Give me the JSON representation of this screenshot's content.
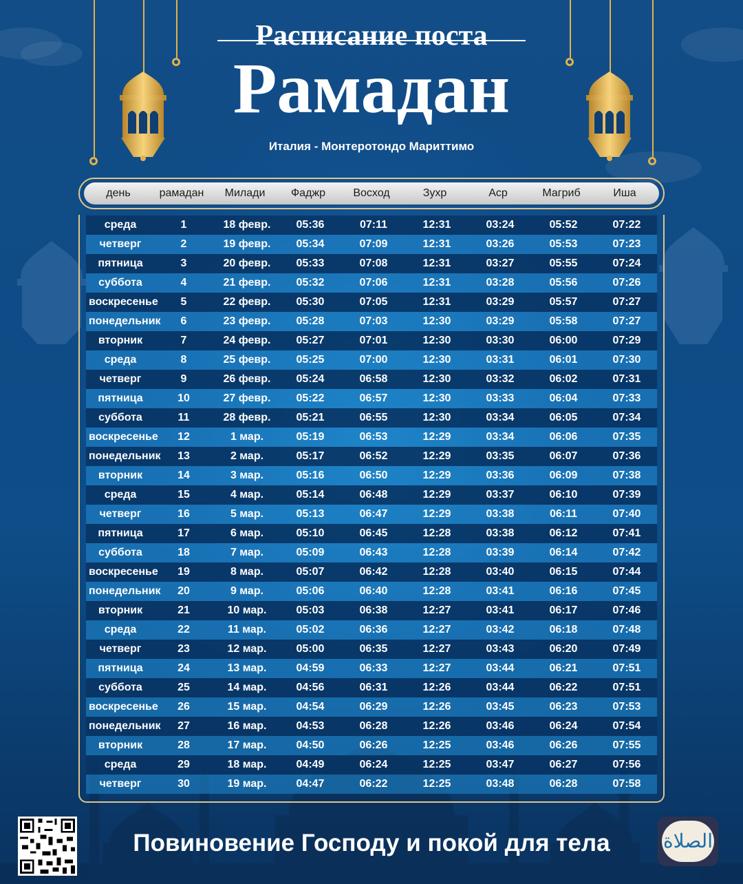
{
  "header": {
    "title_small": "Расписание поста",
    "title_big": "Рамадан",
    "location": "Италия - Монтеротондо Мариттимо"
  },
  "table": {
    "columns": [
      "день",
      "рамадан",
      "Милади",
      "Фаджр",
      "Восход",
      "Зухр",
      "Аср",
      "Магриб",
      "Иша"
    ],
    "rows": [
      [
        "среда",
        "1",
        "18 февр.",
        "05:36",
        "07:11",
        "12:31",
        "03:24",
        "05:52",
        "07:22"
      ],
      [
        "четверг",
        "2",
        "19 февр.",
        "05:34",
        "07:09",
        "12:31",
        "03:26",
        "05:53",
        "07:23"
      ],
      [
        "пятница",
        "3",
        "20 февр.",
        "05:33",
        "07:08",
        "12:31",
        "03:27",
        "05:55",
        "07:24"
      ],
      [
        "суббота",
        "4",
        "21 февр.",
        "05:32",
        "07:06",
        "12:31",
        "03:28",
        "05:56",
        "07:26"
      ],
      [
        "воскресенье",
        "5",
        "22 февр.",
        "05:30",
        "07:05",
        "12:31",
        "03:29",
        "05:57",
        "07:27"
      ],
      [
        "понедельник",
        "6",
        "23 февр.",
        "05:28",
        "07:03",
        "12:30",
        "03:29",
        "05:58",
        "07:27"
      ],
      [
        "вторник",
        "7",
        "24 февр.",
        "05:27",
        "07:01",
        "12:30",
        "03:30",
        "06:00",
        "07:29"
      ],
      [
        "среда",
        "8",
        "25 февр.",
        "05:25",
        "07:00",
        "12:30",
        "03:31",
        "06:01",
        "07:30"
      ],
      [
        "четверг",
        "9",
        "26 февр.",
        "05:24",
        "06:58",
        "12:30",
        "03:32",
        "06:02",
        "07:31"
      ],
      [
        "пятница",
        "10",
        "27 февр.",
        "05:22",
        "06:57",
        "12:30",
        "03:33",
        "06:04",
        "07:33"
      ],
      [
        "суббота",
        "11",
        "28 февр.",
        "05:21",
        "06:55",
        "12:30",
        "03:34",
        "06:05",
        "07:34"
      ],
      [
        "воскресенье",
        "12",
        "1 мар.",
        "05:19",
        "06:53",
        "12:29",
        "03:34",
        "06:06",
        "07:35"
      ],
      [
        "понедельник",
        "13",
        "2 мар.",
        "05:17",
        "06:52",
        "12:29",
        "03:35",
        "06:07",
        "07:36"
      ],
      [
        "вторник",
        "14",
        "3 мар.",
        "05:16",
        "06:50",
        "12:29",
        "03:36",
        "06:09",
        "07:38"
      ],
      [
        "среда",
        "15",
        "4 мар.",
        "05:14",
        "06:48",
        "12:29",
        "03:37",
        "06:10",
        "07:39"
      ],
      [
        "четверг",
        "16",
        "5 мар.",
        "05:13",
        "06:47",
        "12:29",
        "03:38",
        "06:11",
        "07:40"
      ],
      [
        "пятница",
        "17",
        "6 мар.",
        "05:10",
        "06:45",
        "12:28",
        "03:38",
        "06:12",
        "07:41"
      ],
      [
        "суббота",
        "18",
        "7 мар.",
        "05:09",
        "06:43",
        "12:28",
        "03:39",
        "06:14",
        "07:42"
      ],
      [
        "воскресенье",
        "19",
        "8 мар.",
        "05:07",
        "06:42",
        "12:28",
        "03:40",
        "06:15",
        "07:44"
      ],
      [
        "понедельник",
        "20",
        "9 мар.",
        "05:06",
        "06:40",
        "12:28",
        "03:41",
        "06:16",
        "07:45"
      ],
      [
        "вторник",
        "21",
        "10 мар.",
        "05:03",
        "06:38",
        "12:27",
        "03:41",
        "06:17",
        "07:46"
      ],
      [
        "среда",
        "22",
        "11 мар.",
        "05:02",
        "06:36",
        "12:27",
        "03:42",
        "06:18",
        "07:48"
      ],
      [
        "четверг",
        "23",
        "12 мар.",
        "05:00",
        "06:35",
        "12:27",
        "03:43",
        "06:20",
        "07:49"
      ],
      [
        "пятница",
        "24",
        "13 мар.",
        "04:59",
        "06:33",
        "12:27",
        "03:44",
        "06:21",
        "07:51"
      ],
      [
        "суббота",
        "25",
        "14 мар.",
        "04:56",
        "06:31",
        "12:26",
        "03:44",
        "06:22",
        "07:51"
      ],
      [
        "воскресенье",
        "26",
        "15 мар.",
        "04:54",
        "06:29",
        "12:26",
        "03:45",
        "06:23",
        "07:53"
      ],
      [
        "понедельник",
        "27",
        "16 мар.",
        "04:53",
        "06:28",
        "12:26",
        "03:46",
        "06:24",
        "07:54"
      ],
      [
        "вторник",
        "28",
        "17 мар.",
        "04:50",
        "06:26",
        "12:25",
        "03:46",
        "06:26",
        "07:55"
      ],
      [
        "среда",
        "29",
        "18 мар.",
        "04:49",
        "06:24",
        "12:25",
        "03:47",
        "06:27",
        "07:56"
      ],
      [
        "четверг",
        "30",
        "19 мар.",
        "04:47",
        "06:22",
        "12:25",
        "03:48",
        "06:28",
        "07:58"
      ]
    ]
  },
  "footer": {
    "slogan": "Повиновение Господу и покой для тела",
    "logo_text": "الصلاة"
  },
  "colors": {
    "background": "#0f4b86",
    "gold": "#e3c48a",
    "row_dark": "#083464",
    "row_light": "#208cd4"
  },
  "icons": [
    "lantern-icon",
    "qr-code-icon",
    "app-logo-icon"
  ]
}
